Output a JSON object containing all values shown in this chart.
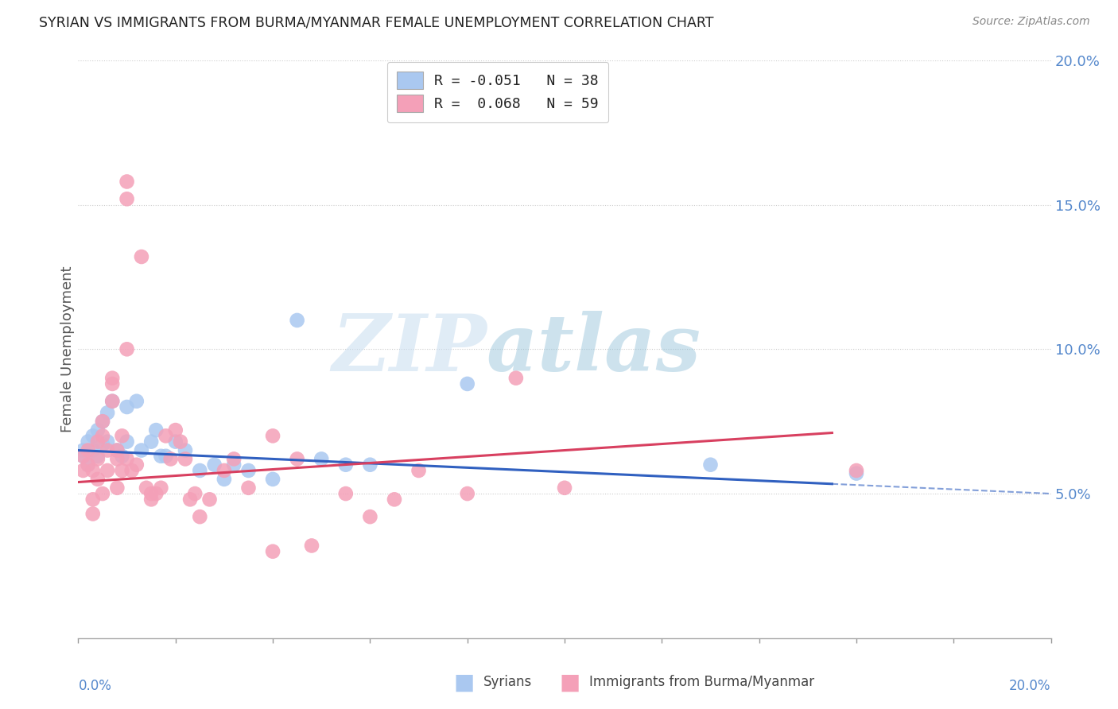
{
  "title": "SYRIAN VS IMMIGRANTS FROM BURMA/MYANMAR FEMALE UNEMPLOYMENT CORRELATION CHART",
  "source": "Source: ZipAtlas.com",
  "ylabel": "Female Unemployment",
  "right_yticks": [
    0.05,
    0.1,
    0.15,
    0.2
  ],
  "right_ytick_labels": [
    "5.0%",
    "10.0%",
    "15.0%",
    "20.0%"
  ],
  "xlim": [
    0.0,
    0.2
  ],
  "ylim": [
    0.0,
    0.2
  ],
  "legend_blue_label": "R = -0.051   N = 38",
  "legend_pink_label": "R =  0.068   N = 59",
  "blue_dot_color": "#aac8f0",
  "pink_dot_color": "#f4a0b8",
  "syrians_line_color": "#3060c0",
  "burma_line_color": "#d84060",
  "syrians_intercept": 0.065,
  "syrians_slope": -0.075,
  "burma_intercept": 0.054,
  "burma_slope": 0.11,
  "bottom_legend_label1": "Syrians",
  "bottom_legend_label2": "Immigrants from Burma/Myanmar",
  "syrians_scatter": [
    [
      0.001,
      0.065
    ],
    [
      0.001,
      0.063
    ],
    [
      0.002,
      0.068
    ],
    [
      0.002,
      0.06
    ],
    [
      0.003,
      0.07
    ],
    [
      0.003,
      0.065
    ],
    [
      0.004,
      0.072
    ],
    [
      0.004,
      0.063
    ],
    [
      0.005,
      0.075
    ],
    [
      0.005,
      0.067
    ],
    [
      0.006,
      0.068
    ],
    [
      0.006,
      0.078
    ],
    [
      0.007,
      0.082
    ],
    [
      0.008,
      0.065
    ],
    [
      0.009,
      0.063
    ],
    [
      0.01,
      0.068
    ],
    [
      0.01,
      0.08
    ],
    [
      0.012,
      0.082
    ],
    [
      0.013,
      0.065
    ],
    [
      0.015,
      0.068
    ],
    [
      0.016,
      0.072
    ],
    [
      0.017,
      0.063
    ],
    [
      0.018,
      0.063
    ],
    [
      0.02,
      0.068
    ],
    [
      0.022,
      0.065
    ],
    [
      0.025,
      0.058
    ],
    [
      0.028,
      0.06
    ],
    [
      0.03,
      0.055
    ],
    [
      0.032,
      0.06
    ],
    [
      0.035,
      0.058
    ],
    [
      0.04,
      0.055
    ],
    [
      0.045,
      0.11
    ],
    [
      0.05,
      0.062
    ],
    [
      0.055,
      0.06
    ],
    [
      0.06,
      0.06
    ],
    [
      0.08,
      0.088
    ],
    [
      0.13,
      0.06
    ],
    [
      0.16,
      0.057
    ]
  ],
  "burma_scatter": [
    [
      0.001,
      0.058
    ],
    [
      0.001,
      0.063
    ],
    [
      0.002,
      0.06
    ],
    [
      0.002,
      0.065
    ],
    [
      0.003,
      0.058
    ],
    [
      0.003,
      0.043
    ],
    [
      0.003,
      0.048
    ],
    [
      0.004,
      0.062
    ],
    [
      0.004,
      0.068
    ],
    [
      0.004,
      0.055
    ],
    [
      0.005,
      0.05
    ],
    [
      0.005,
      0.07
    ],
    [
      0.005,
      0.075
    ],
    [
      0.006,
      0.058
    ],
    [
      0.006,
      0.065
    ],
    [
      0.007,
      0.082
    ],
    [
      0.007,
      0.088
    ],
    [
      0.007,
      0.09
    ],
    [
      0.008,
      0.052
    ],
    [
      0.008,
      0.062
    ],
    [
      0.008,
      0.065
    ],
    [
      0.009,
      0.07
    ],
    [
      0.009,
      0.058
    ],
    [
      0.01,
      0.1
    ],
    [
      0.01,
      0.062
    ],
    [
      0.01,
      0.152
    ],
    [
      0.01,
      0.158
    ],
    [
      0.011,
      0.058
    ],
    [
      0.012,
      0.06
    ],
    [
      0.013,
      0.132
    ],
    [
      0.014,
      0.052
    ],
    [
      0.015,
      0.048
    ],
    [
      0.015,
      0.05
    ],
    [
      0.016,
      0.05
    ],
    [
      0.017,
      0.052
    ],
    [
      0.018,
      0.07
    ],
    [
      0.019,
      0.062
    ],
    [
      0.02,
      0.072
    ],
    [
      0.021,
      0.068
    ],
    [
      0.022,
      0.062
    ],
    [
      0.023,
      0.048
    ],
    [
      0.024,
      0.05
    ],
    [
      0.025,
      0.042
    ],
    [
      0.027,
      0.048
    ],
    [
      0.03,
      0.058
    ],
    [
      0.032,
      0.062
    ],
    [
      0.035,
      0.052
    ],
    [
      0.04,
      0.07
    ],
    [
      0.04,
      0.03
    ],
    [
      0.045,
      0.062
    ],
    [
      0.048,
      0.032
    ],
    [
      0.055,
      0.05
    ],
    [
      0.06,
      0.042
    ],
    [
      0.065,
      0.048
    ],
    [
      0.07,
      0.058
    ],
    [
      0.08,
      0.05
    ],
    [
      0.09,
      0.09
    ],
    [
      0.1,
      0.052
    ],
    [
      0.16,
      0.058
    ]
  ]
}
